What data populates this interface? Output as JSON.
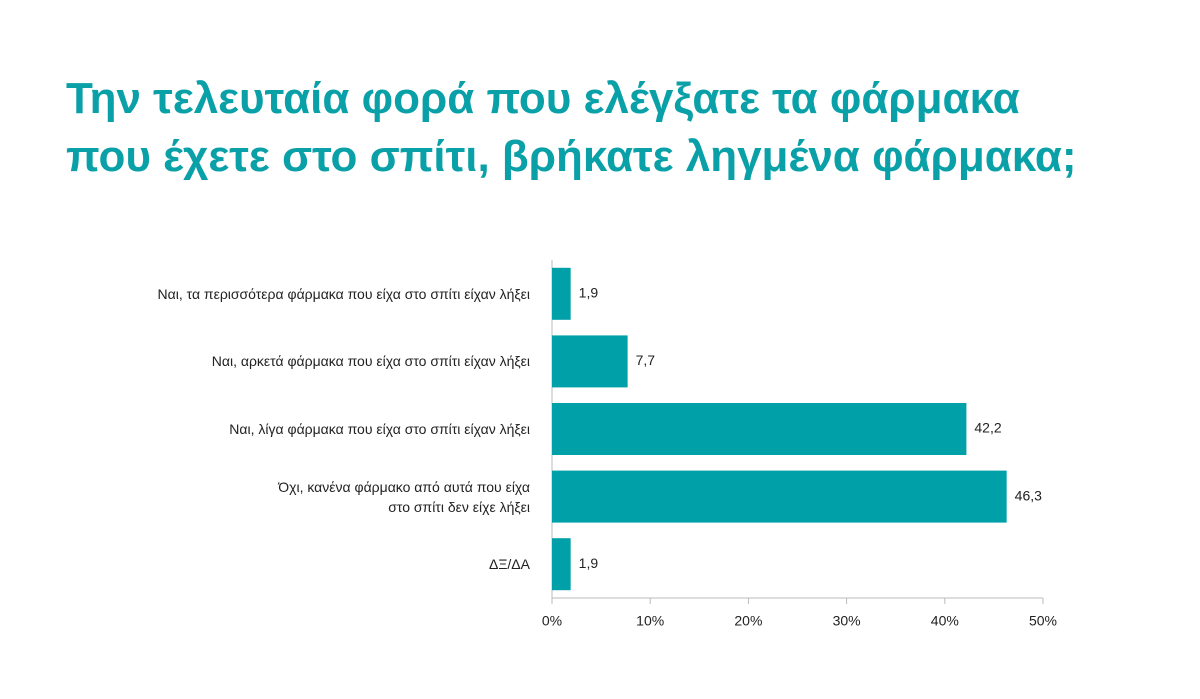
{
  "chart_data": {
    "type": "bar",
    "orientation": "horizontal",
    "title": "Την τελευταία φορά που ελέγξατε τα φάρμακα\nπου έχετε στο σπίτι, βρήκατε ληγμένα φάρμακα;",
    "categories": [
      "Ναι, τα περισσότερα φάρμακα που είχα στο σπίτι είχαν λήξει",
      "Ναι, αρκετά φάρμακα που είχα στο σπίτι είχαν λήξει",
      "Ναι, λίγα φάρμακα που είχα στο σπίτι είχαν λήξει",
      "Όχι, κανένα φάρμακο από αυτά που είχα\nστο σπίτι δεν είχε λήξει",
      "ΔΞ/ΔΑ"
    ],
    "values": [
      1.9,
      7.7,
      42.2,
      46.3,
      1.9
    ],
    "value_labels": [
      "1,9",
      "7,7",
      "42,2",
      "46,3",
      "1,9"
    ],
    "color": "#00a0a8",
    "xlim": [
      0,
      50
    ],
    "xticks": [
      {
        "value": 0,
        "label": "0%"
      },
      {
        "value": 10,
        "label": "10%"
      },
      {
        "value": 20,
        "label": "20%"
      },
      {
        "value": 30,
        "label": "30%"
      },
      {
        "value": 40,
        "label": "40%"
      },
      {
        "value": 50,
        "label": "50%"
      }
    ]
  }
}
